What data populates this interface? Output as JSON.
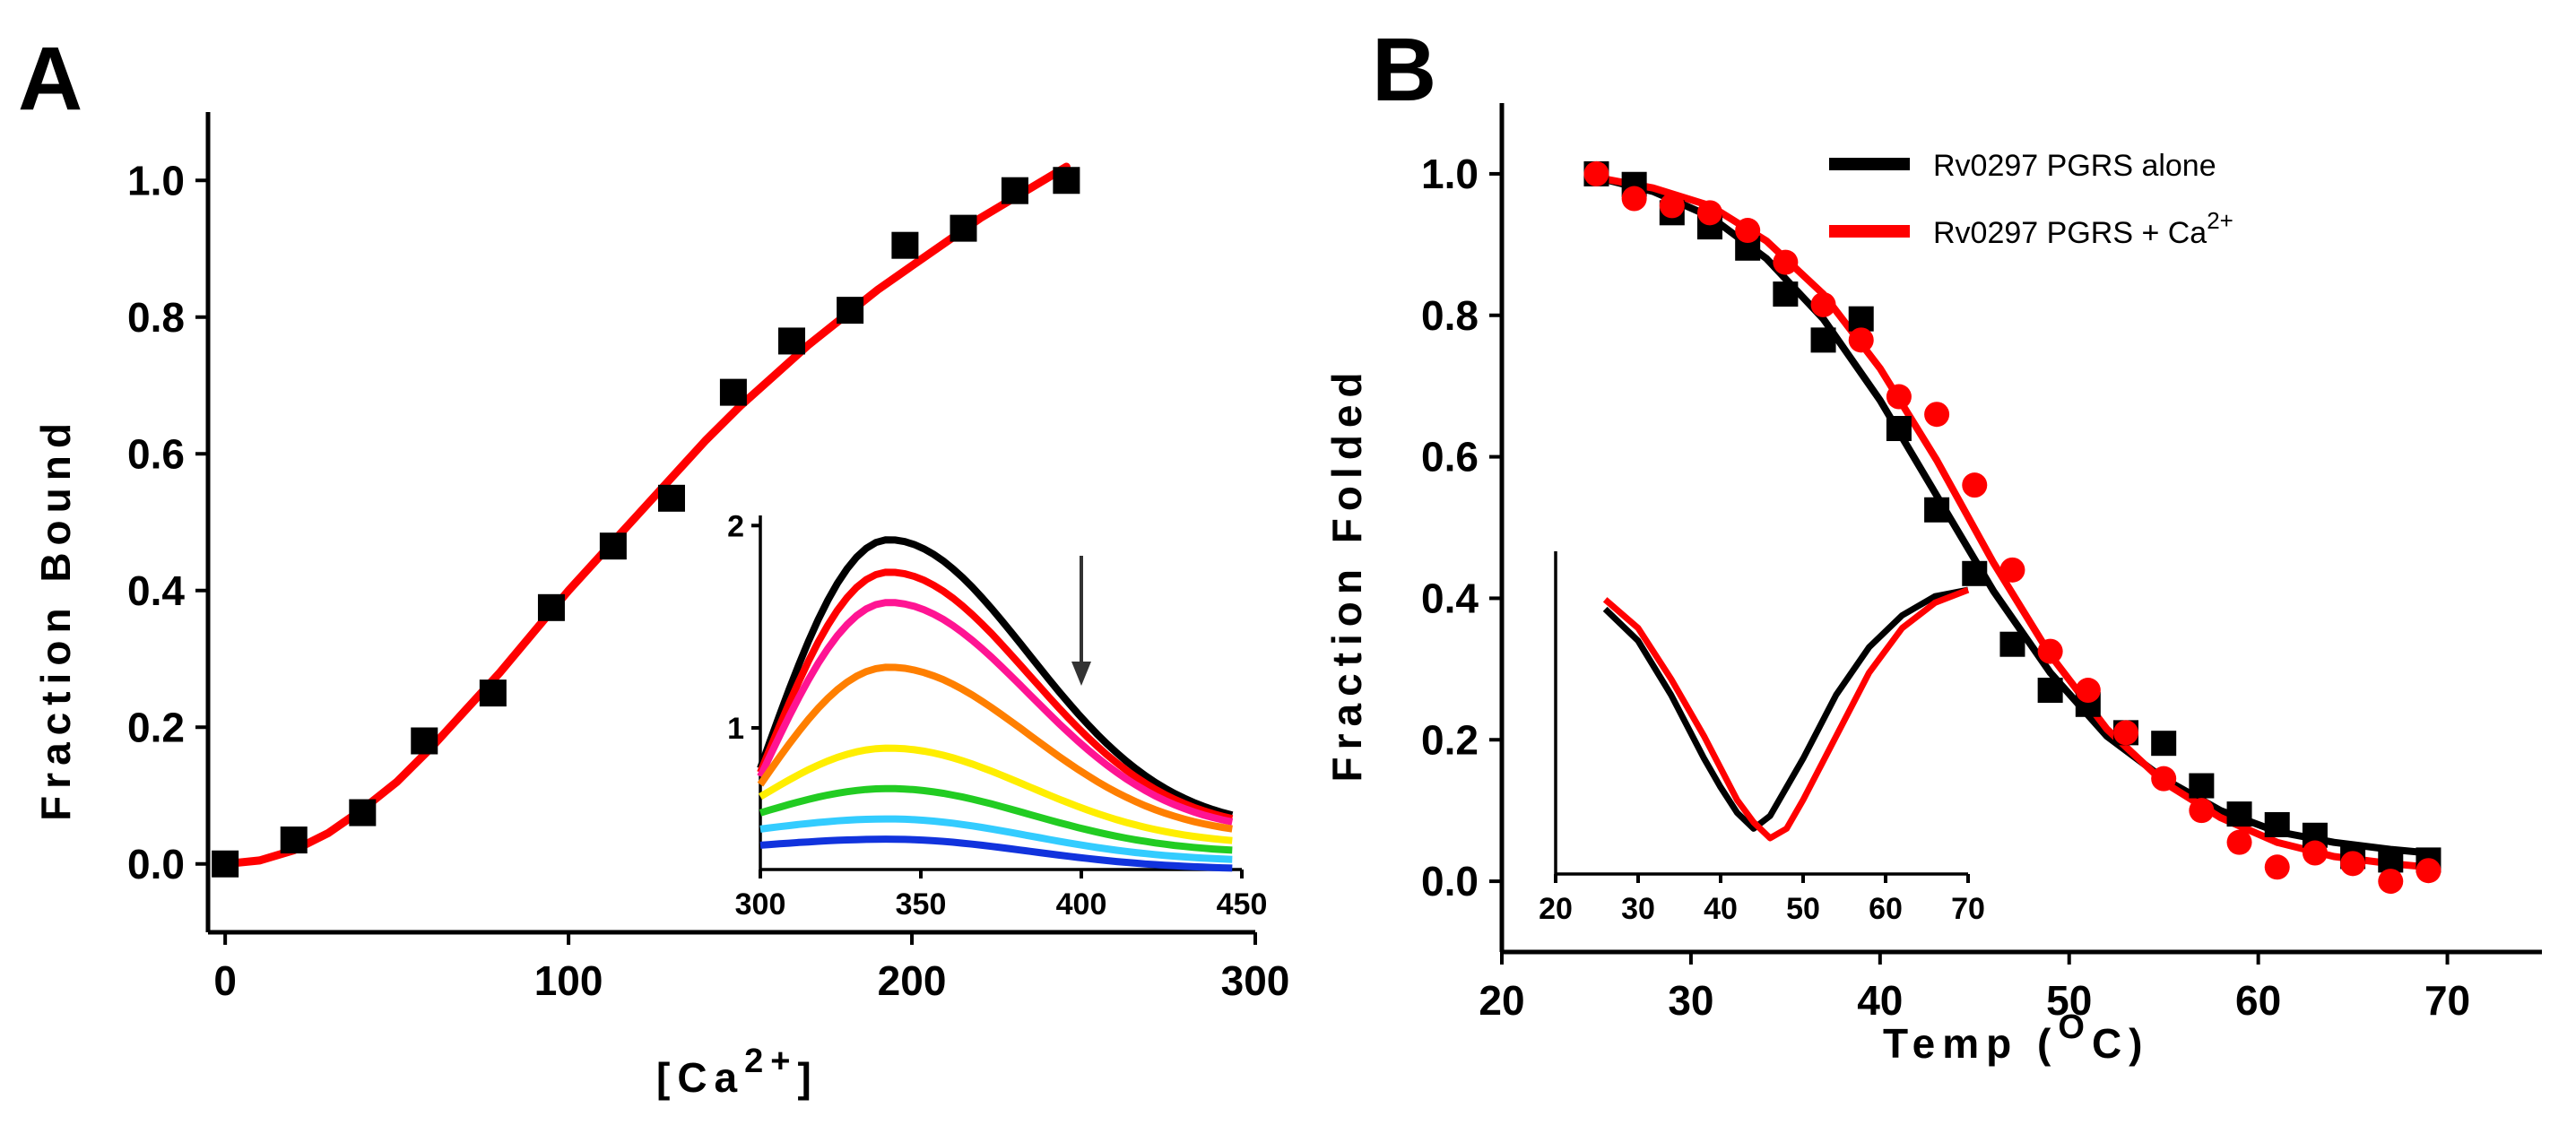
{
  "chart_data": [
    {
      "panel": "A",
      "type": "scatter",
      "title": "",
      "xlabel": "[Ca",
      "xlabel_sup": "2+",
      "xlabel_close": "]",
      "ylabel": "Fraction Bound",
      "xlim": [
        -5,
        300
      ],
      "ylim": [
        -0.1,
        1.1
      ],
      "xticks": [
        "0",
        "100",
        "200",
        "300"
      ],
      "yticks": [
        "0.0",
        "0.2",
        "0.4",
        "0.6",
        "0.8",
        "1.0"
      ],
      "colors": {
        "points": "#000000",
        "fit": "#ff0000"
      },
      "series": [
        {
          "name": "data",
          "kind": "points",
          "x": [
            0,
            20,
            40,
            58,
            78,
            95,
            113,
            130,
            148,
            165,
            182,
            198,
            215,
            230,
            245
          ],
          "y": [
            0.0,
            0.035,
            0.075,
            0.18,
            0.25,
            0.375,
            0.465,
            0.535,
            0.69,
            0.765,
            0.81,
            0.905,
            0.93,
            0.985,
            1.0
          ]
        },
        {
          "name": "fit",
          "kind": "line",
          "x": [
            0,
            10,
            20,
            30,
            40,
            50,
            60,
            70,
            80,
            90,
            100,
            110,
            120,
            130,
            140,
            150,
            160,
            170,
            180,
            190,
            200,
            210,
            220,
            230,
            240,
            245
          ],
          "y": [
            0.0,
            0.005,
            0.02,
            0.045,
            0.08,
            0.12,
            0.17,
            0.225,
            0.28,
            0.34,
            0.4,
            0.455,
            0.51,
            0.565,
            0.62,
            0.67,
            0.715,
            0.76,
            0.8,
            0.84,
            0.875,
            0.91,
            0.945,
            0.975,
            1.005,
            1.02
          ]
        }
      ],
      "inset": {
        "type": "line",
        "xlim": [
          300,
          450
        ],
        "ylim": [
          0.3,
          2.05
        ],
        "xticks": [
          "300",
          "350",
          "400",
          "450"
        ],
        "yticks": [
          "1",
          "2"
        ],
        "annotation": "arrow pointing down at 400",
        "series": [
          {
            "color": "#000000",
            "peak": 1.93,
            "base": 0.8,
            "tail": 0.5
          },
          {
            "color": "#ff0000",
            "peak": 1.77,
            "base": 0.78,
            "tail": 0.49
          },
          {
            "color": "#ff1493",
            "peak": 1.62,
            "base": 0.76,
            "tail": 0.48
          },
          {
            "color": "#ff7f00",
            "peak": 1.3,
            "base": 0.72,
            "tail": 0.46
          },
          {
            "color": "#ffee00",
            "peak": 0.9,
            "base": 0.66,
            "tail": 0.42
          },
          {
            "color": "#22cc22",
            "peak": 0.7,
            "base": 0.58,
            "tail": 0.38
          },
          {
            "color": "#33ccff",
            "peak": 0.55,
            "base": 0.5,
            "tail": 0.34
          },
          {
            "color": "#1133dd",
            "peak": 0.45,
            "base": 0.42,
            "tail": 0.3
          }
        ]
      }
    },
    {
      "panel": "B",
      "type": "scatter",
      "title": "",
      "xlabel": "Temp (",
      "xlabel_sup": "O",
      "xlabel_close": "C)",
      "ylabel": "Fraction Folded",
      "xlim": [
        20,
        75
      ],
      "ylim": [
        -0.1,
        1.1
      ],
      "xticks": [
        "20",
        "30",
        "40",
        "50",
        "60",
        "70"
      ],
      "yticks": [
        "0.0",
        "0.2",
        "0.4",
        "0.6",
        "0.8",
        "1.0"
      ],
      "legend": {
        "position": "top-right",
        "items": [
          {
            "label": "Rv0297 PGRS alone",
            "color": "#000000"
          },
          {
            "label": "Rv0297 PGRS + Ca",
            "sup": "2+",
            "color": "#ff0000"
          }
        ]
      },
      "series": [
        {
          "name": "Rv0297 PGRS alone points",
          "kind": "points",
          "marker": "square",
          "color": "#000000",
          "x": [
            25,
            27,
            29,
            31,
            33,
            35,
            37,
            39,
            41,
            43,
            45,
            47,
            49,
            51,
            53,
            55,
            57,
            59,
            61,
            63,
            65,
            67,
            69
          ],
          "y": [
            1.0,
            0.985,
            0.945,
            0.925,
            0.895,
            0.83,
            0.765,
            0.795,
            0.64,
            0.525,
            0.435,
            0.335,
            0.27,
            0.25,
            0.21,
            0.195,
            0.135,
            0.095,
            0.08,
            0.065,
            0.035,
            0.03,
            0.03
          ]
        },
        {
          "name": "Rv0297 PGRS + Ca points",
          "kind": "points",
          "marker": "circle",
          "color": "#ff0000",
          "x": [
            25,
            27,
            29,
            31,
            33,
            35,
            37,
            39,
            41,
            43,
            45,
            47,
            49,
            51,
            53,
            55,
            57,
            59,
            61,
            63,
            65,
            67,
            69
          ],
          "y": [
            1.0,
            0.965,
            0.955,
            0.945,
            0.92,
            0.875,
            0.815,
            0.765,
            0.685,
            0.66,
            0.56,
            0.44,
            0.325,
            0.27,
            0.21,
            0.145,
            0.1,
            0.055,
            0.02,
            0.04,
            0.025,
            0.0,
            0.015
          ]
        },
        {
          "name": "Rv0297 PGRS alone fit",
          "kind": "line",
          "color": "#000000",
          "x": [
            25,
            28,
            31,
            34,
            37,
            40,
            43,
            46,
            49,
            52,
            55,
            58,
            61,
            64,
            67,
            69
          ],
          "y": [
            0.995,
            0.975,
            0.94,
            0.88,
            0.795,
            0.68,
            0.545,
            0.41,
            0.295,
            0.205,
            0.145,
            0.1,
            0.07,
            0.055,
            0.045,
            0.04
          ]
        },
        {
          "name": "Rv0297 PGRS + Ca fit",
          "kind": "line",
          "color": "#ff0000",
          "x": [
            25,
            28,
            31,
            34,
            37,
            40,
            43,
            46,
            49,
            52,
            55,
            58,
            61,
            64,
            67,
            69
          ],
          "y": [
            0.995,
            0.98,
            0.955,
            0.905,
            0.83,
            0.725,
            0.595,
            0.45,
            0.32,
            0.215,
            0.14,
            0.09,
            0.055,
            0.035,
            0.025,
            0.02
          ]
        }
      ],
      "inset": {
        "type": "line",
        "xlim": [
          20,
          70
        ],
        "ylim": [
          0,
          1
        ],
        "xticks": [
          "20",
          "30",
          "40",
          "50",
          "60",
          "70"
        ],
        "series": [
          {
            "color": "#000000",
            "x": [
              26,
              30,
              34,
              38,
              40,
              42,
              44,
              46,
              50,
              54,
              58,
              62,
              66,
              70
            ],
            "y": [
              0.72,
              0.62,
              0.45,
              0.25,
              0.16,
              0.08,
              0.03,
              0.07,
              0.25,
              0.45,
              0.6,
              0.7,
              0.76,
              0.78
            ]
          },
          {
            "color": "#ff0000",
            "x": [
              26,
              30,
              34,
              38,
              40,
              42,
              44,
              46,
              48,
              50,
              54,
              58,
              62,
              66,
              70
            ],
            "y": [
              0.75,
              0.66,
              0.5,
              0.32,
              0.22,
              0.12,
              0.05,
              0.0,
              0.03,
              0.12,
              0.32,
              0.52,
              0.66,
              0.74,
              0.78
            ]
          }
        ]
      }
    }
  ]
}
